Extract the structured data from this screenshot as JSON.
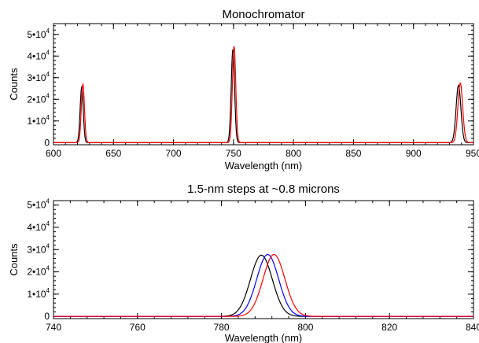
{
  "chart_data": [
    {
      "type": "line",
      "title": "Monochromator",
      "xlabel": "Wavelength (nm)",
      "ylabel": "Counts",
      "xlim": [
        600,
        950
      ],
      "ylim": [
        -1000,
        55000
      ],
      "xticks": [
        600,
        650,
        700,
        750,
        800,
        850,
        900,
        950
      ],
      "yticks": [
        {
          "value": 0,
          "label": "0",
          "exp": ""
        },
        {
          "value": 10000,
          "label": "1•10",
          "exp": "4"
        },
        {
          "value": 20000,
          "label": "2•10",
          "exp": "4"
        },
        {
          "value": 30000,
          "label": "3•10",
          "exp": "4"
        },
        {
          "value": 40000,
          "label": "4•10",
          "exp": "4"
        },
        {
          "value": 50000,
          "label": "5•10",
          "exp": "4"
        }
      ],
      "grid": false,
      "series": [
        {
          "color": "#000000",
          "peaks": [
            {
              "center": 623.5,
              "height": 25500,
              "sigma": 1.3
            },
            {
              "center": 749.5,
              "height": 43000,
              "sigma": 1.4
            },
            {
              "center": 937.5,
              "height": 26500,
              "sigma": 2.0
            }
          ]
        },
        {
          "color": "#ff0000",
          "peaks": [
            {
              "center": 624.5,
              "height": 27000,
              "sigma": 1.3
            },
            {
              "center": 750.5,
              "height": 44500,
              "sigma": 1.4
            },
            {
              "center": 939.0,
              "height": 27500,
              "sigma": 2.0
            }
          ]
        }
      ]
    },
    {
      "type": "line",
      "title": "1.5-nm steps at ~0.8 microns",
      "xlabel": "Wavelength (nm)",
      "ylabel": "Counts",
      "xlim": [
        740,
        840
      ],
      "ylim": [
        -1000,
        52000
      ],
      "xticks": [
        740,
        760,
        780,
        800,
        820,
        840
      ],
      "yticks": [
        {
          "value": 0,
          "label": "0",
          "exp": ""
        },
        {
          "value": 10000,
          "label": "1•10",
          "exp": "4"
        },
        {
          "value": 20000,
          "label": "2•10",
          "exp": "4"
        },
        {
          "value": 30000,
          "label": "3•10",
          "exp": "4"
        },
        {
          "value": 40000,
          "label": "4•10",
          "exp": "4"
        },
        {
          "value": 50000,
          "label": "5•10",
          "exp": "4"
        }
      ],
      "grid": false,
      "series": [
        {
          "color": "#000000",
          "peaks": [
            {
              "center": 789.5,
              "height": 27500,
              "sigma": 2.6
            }
          ]
        },
        {
          "color": "#0000ff",
          "peaks": [
            {
              "center": 791.0,
              "height": 27800,
              "sigma": 2.6
            }
          ]
        },
        {
          "color": "#ff0000",
          "peaks": [
            {
              "center": 792.5,
              "height": 27800,
              "sigma": 2.6
            }
          ]
        }
      ]
    }
  ]
}
